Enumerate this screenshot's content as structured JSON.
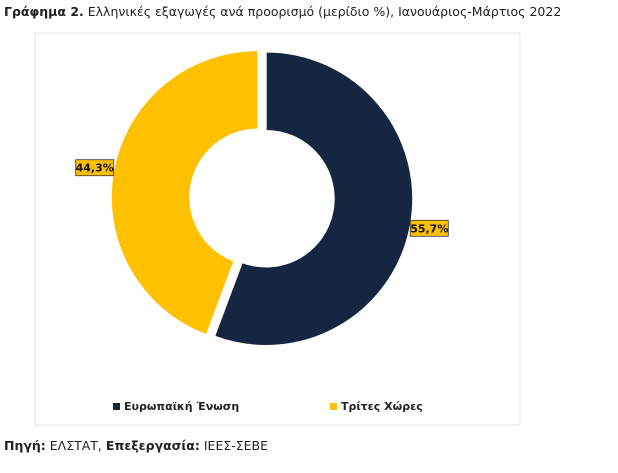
{
  "chart_data": {
    "type": "donut",
    "figure_label": "Γράφημα 2.",
    "title": "Ελληνικές εξαγωγές ανά προορισμό (μερίδιο %), Ιανουάριος-Μάρτιος 2022",
    "categories": [
      "Ευρωπαϊκή Ένωση",
      "Τρίτες Χώρες"
    ],
    "values": [
      55.7,
      44.3
    ],
    "value_labels": [
      "55,7%",
      "44,3%"
    ],
    "colors": [
      "#172640",
      "#FFC000"
    ],
    "legend": "bottom"
  },
  "footer": [
    {
      "label": "Πηγή:",
      "text": "ΕΛΣΤΑΤ,"
    },
    {
      "label": "Επεξεργασία:",
      "text": "ΙΕΕΣ-ΣΕΒΕ"
    }
  ]
}
